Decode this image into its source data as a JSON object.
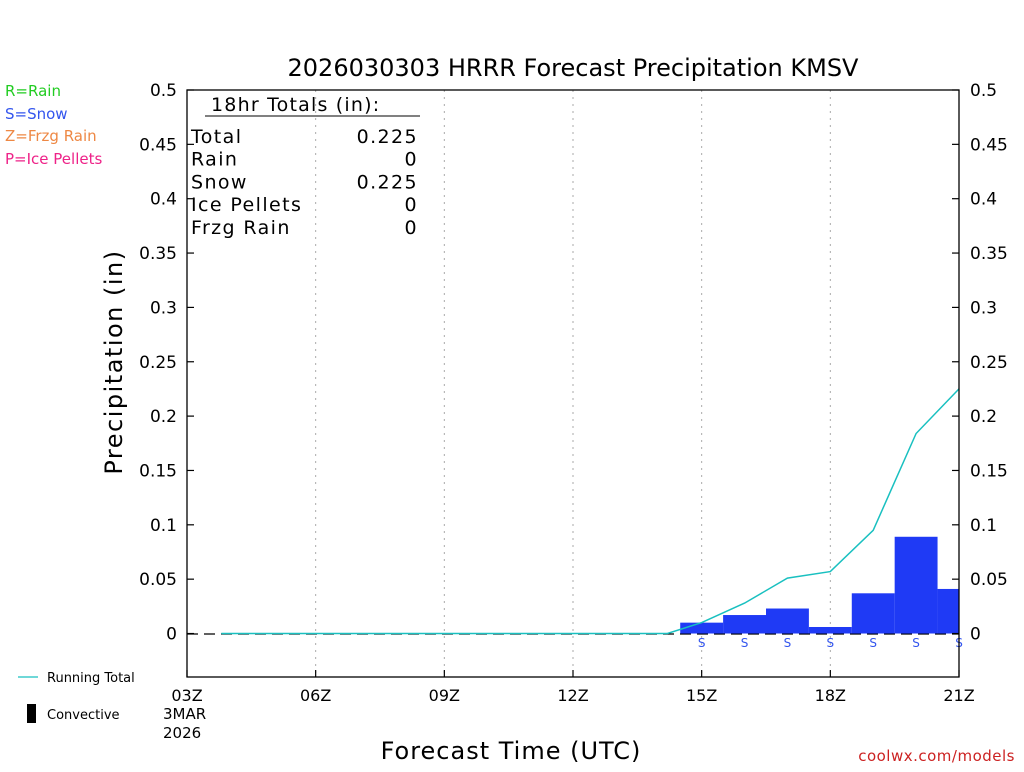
{
  "title": "2026030303 HRRR Forecast Precipitation KMSV",
  "legend_types": [
    {
      "text": "R=Rain",
      "color": "#22cc22"
    },
    {
      "text": "S=Snow",
      "color": "#3355ee"
    },
    {
      "text": "Z=Frzg Rain",
      "color": "#ee8844"
    },
    {
      "text": "P=Ice Pellets",
      "color": "#ee2288"
    }
  ],
  "totals_box": {
    "header": "18hr Totals (in):",
    "rows": [
      {
        "label": "Total",
        "value": "0.225"
      },
      {
        "label": "Rain",
        "value": "0"
      },
      {
        "label": "Snow",
        "value": "0.225"
      },
      {
        "label": "Ice Pellets",
        "value": "0"
      },
      {
        "label": "Frzg Rain",
        "value": "0"
      }
    ]
  },
  "bottom_legend": {
    "running_total": "Running Total",
    "convective": "Convective"
  },
  "date_label": [
    "3MAR",
    "2026"
  ],
  "credit": "coolwx.com/models",
  "colors": {
    "snow_bar": "#1f3af5",
    "running_total": "#19c0c0",
    "snow_marker": "#3355ee",
    "credit": "#cc2222"
  },
  "chart_data": {
    "type": "bar",
    "title": "2026030303 HRRR Forecast Precipitation KMSV",
    "xlabel": "Forecast Time (UTC)",
    "ylabel": "Precipitation (in)",
    "ylim": [
      -0.04,
      0.5
    ],
    "y_ticks": [
      0,
      0.05,
      0.1,
      0.15,
      0.2,
      0.25,
      0.3,
      0.35,
      0.4,
      0.45,
      0.5
    ],
    "y_tick_labels": [
      "0",
      "0.05",
      "0.1",
      "0.15",
      "0.2",
      "0.25",
      "0.3",
      "0.35",
      "0.4",
      "0.45",
      "0.5"
    ],
    "xlim": [
      3,
      21
    ],
    "x_ticks": [
      3,
      6,
      9,
      12,
      15,
      18,
      21
    ],
    "x_tick_labels": [
      "03Z",
      "06Z",
      "09Z",
      "12Z",
      "15Z",
      "18Z",
      "21Z"
    ],
    "grid_x": [
      6,
      9,
      12,
      15,
      18
    ],
    "bars": [
      {
        "hour": 15,
        "value": 0.01,
        "type": "S"
      },
      {
        "hour": 16,
        "value": 0.017,
        "type": "S"
      },
      {
        "hour": 17,
        "value": 0.023,
        "type": "S"
      },
      {
        "hour": 18,
        "value": 0.006,
        "type": "S"
      },
      {
        "hour": 19,
        "value": 0.037,
        "type": "S"
      },
      {
        "hour": 20,
        "value": 0.089,
        "type": "S"
      },
      {
        "hour": 21,
        "value": 0.041,
        "type": "S"
      }
    ],
    "running_total": {
      "name": "Running Total",
      "x": [
        3.8,
        14.2,
        15,
        16,
        17,
        18,
        19,
        20,
        21
      ],
      "y": [
        0,
        0,
        0.01,
        0.028,
        0.051,
        0.057,
        0.095,
        0.184,
        0.225
      ]
    }
  }
}
